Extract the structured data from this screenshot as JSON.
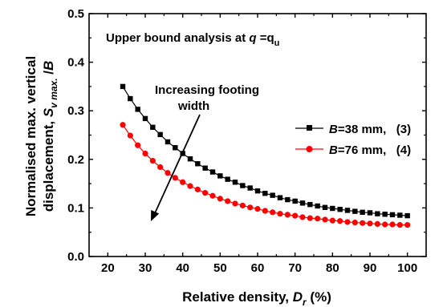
{
  "chart_data": {
    "type": "line",
    "title": "Upper bound analysis at q =qu",
    "title_parts": [
      "Upper bound analysis at ",
      "q",
      " =q",
      "u"
    ],
    "xlabel": "Relative density, Dr (%)",
    "xlabel_parts": [
      "Relative density, ",
      "D",
      "r",
      " (%)"
    ],
    "ylabel": "Normalised max. vertical displacement, Sv max. /B",
    "ylabel_line1": "Normalised max. vertical",
    "ylabel_line2_parts": [
      "displacement, ",
      "S",
      "v max.",
      " /",
      "B"
    ],
    "xlim": [
      15,
      105
    ],
    "ylim": [
      0.0,
      0.5
    ],
    "xticks": [
      "20",
      "30",
      "40",
      "50",
      "60",
      "70",
      "80",
      "90",
      "100"
    ],
    "yticks": [
      "0.0",
      "0.1",
      "0.2",
      "0.3",
      "0.4",
      "0.5"
    ],
    "grid": false,
    "legend_position": "right",
    "annotation": {
      "line1": "Increasing footing",
      "line2": "width"
    },
    "x": [
      24,
      26,
      28,
      30,
      32,
      34,
      36,
      38,
      40,
      42,
      44,
      46,
      48,
      50,
      52,
      54,
      56,
      58,
      60,
      62,
      64,
      66,
      68,
      70,
      72,
      74,
      76,
      78,
      80,
      82,
      84,
      86,
      88,
      90,
      92,
      94,
      96,
      98,
      100
    ],
    "series": [
      {
        "name": "B=38 mm,   (3)",
        "legend_parts": [
          "B",
          "=38 mm,   (3)"
        ],
        "color": "#000000",
        "marker": "square",
        "values": [
          0.35,
          0.325,
          0.303,
          0.284,
          0.266,
          0.251,
          0.236,
          0.224,
          0.212,
          0.201,
          0.191,
          0.182,
          0.174,
          0.166,
          0.159,
          0.153,
          0.146,
          0.141,
          0.135,
          0.13,
          0.126,
          0.121,
          0.117,
          0.114,
          0.11,
          0.107,
          0.104,
          0.101,
          0.099,
          0.097,
          0.095,
          0.093,
          0.091,
          0.09,
          0.088,
          0.087,
          0.086,
          0.085,
          0.084
        ]
      },
      {
        "name": "B=76 mm,   (4)",
        "legend_parts": [
          "B",
          "=76 mm,   (4)"
        ],
        "color": "#ff0000",
        "marker": "circle",
        "values": [
          0.271,
          0.249,
          0.229,
          0.212,
          0.197,
          0.184,
          0.172,
          0.162,
          0.153,
          0.145,
          0.138,
          0.131,
          0.125,
          0.119,
          0.114,
          0.109,
          0.105,
          0.101,
          0.098,
          0.094,
          0.091,
          0.088,
          0.086,
          0.084,
          0.081,
          0.079,
          0.078,
          0.076,
          0.074,
          0.073,
          0.071,
          0.07,
          0.069,
          0.068,
          0.067,
          0.066,
          0.066,
          0.065,
          0.065
        ]
      }
    ]
  }
}
